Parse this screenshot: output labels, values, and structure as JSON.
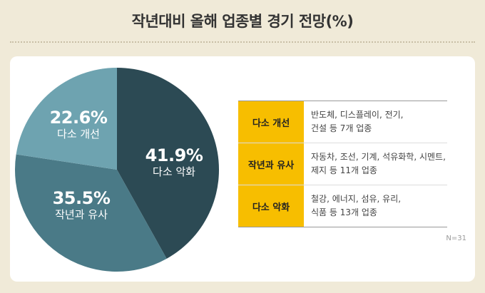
{
  "title": "작년대비 올해 업종별 경기 전망(%)",
  "chart_data": {
    "type": "pie",
    "title": "작년대비 올해 업종별 경기 전망(%)",
    "slices": [
      {
        "label": "다소 악화",
        "value": 41.9,
        "display": "41.9%",
        "color": "#2c4a54"
      },
      {
        "label": "작년과 유사",
        "value": 35.5,
        "display": "35.5%",
        "color": "#4a7a87"
      },
      {
        "label": "다소 개선",
        "value": 22.6,
        "display": "22.6%",
        "color": "#6ea3b0"
      }
    ]
  },
  "table": {
    "rows": [
      {
        "key": "다소 개선",
        "lines": [
          "반도체, 디스플레이, 전기,",
          "건설 등 7개 업종"
        ]
      },
      {
        "key": "작년과 유사",
        "lines": [
          "자동차, 조선, 기계, 석유화학, 시멘트,",
          "제지 등 11개 업종"
        ]
      },
      {
        "key": "다소 악화",
        "lines": [
          "철강, 에너지, 섬유, 유리,",
          "식품 등 13개 업종"
        ]
      }
    ]
  },
  "note": "N=31"
}
